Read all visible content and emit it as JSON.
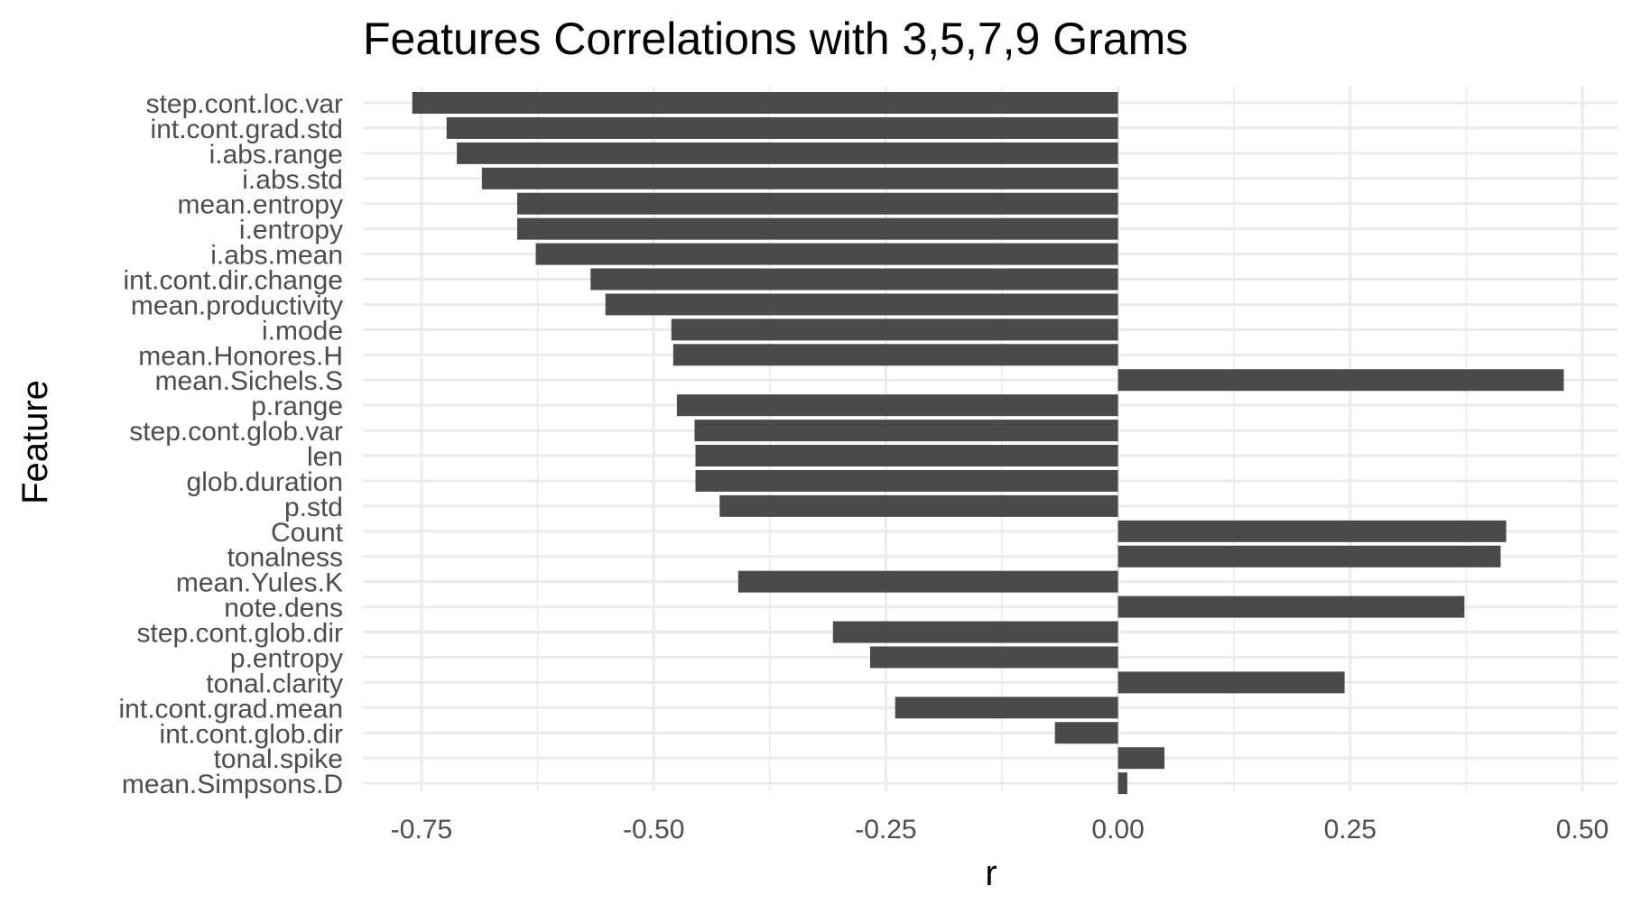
{
  "chart_data": {
    "type": "bar",
    "orientation": "horizontal",
    "title": "Features Correlations with 3,5,7,9 Grams",
    "xlabel": "r",
    "ylabel": "Feature",
    "xlim": [
      -0.8,
      0.52
    ],
    "x_ticks": [
      -0.75,
      -0.5,
      -0.25,
      0.0,
      0.25,
      0.5
    ],
    "x_tick_labels": [
      "-0.75",
      "-0.50",
      "-0.25",
      "0.00",
      "0.25",
      "0.50"
    ],
    "grid": true,
    "legend": "none",
    "bar_color": "#4a4a4a",
    "categories": [
      "step.cont.loc.var",
      "int.cont.grad.std",
      "i.abs.range",
      "i.abs.std",
      "mean.entropy",
      "i.entropy",
      "i.abs.mean",
      "int.cont.dir.change",
      "mean.productivity",
      "i.mode",
      "mean.Honores.H",
      "mean.Sichels.S",
      "p.range",
      "step.cont.glob.var",
      "len",
      "glob.duration",
      "p.std",
      "Count",
      "tonalness",
      "mean.Yules.K",
      "note.dens",
      "step.cont.glob.dir",
      "p.entropy",
      "tonal.clarity",
      "int.cont.grad.mean",
      "int.cont.glob.dir",
      "tonal.spike",
      "mean.Simpsons.D"
    ],
    "values": [
      -0.76,
      -0.723,
      -0.712,
      -0.685,
      -0.647,
      -0.647,
      -0.627,
      -0.568,
      -0.552,
      -0.481,
      -0.479,
      0.48,
      -0.475,
      -0.456,
      -0.455,
      -0.455,
      -0.429,
      0.418,
      0.412,
      -0.409,
      0.373,
      -0.307,
      -0.267,
      0.244,
      -0.24,
      -0.068,
      0.05,
      0.01
    ]
  }
}
